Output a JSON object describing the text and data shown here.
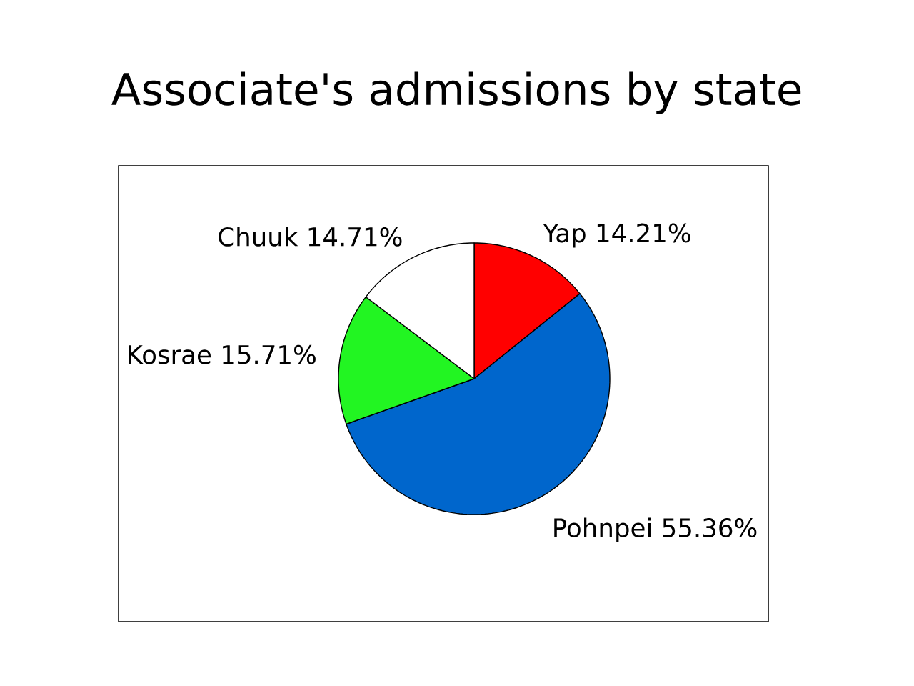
{
  "chart_data": {
    "type": "pie",
    "title": "Associate's admissions by state",
    "categories": [
      "Yap",
      "Pohnpei",
      "Kosrae",
      "Chuuk"
    ],
    "values": [
      14.21,
      55.36,
      15.71,
      14.71
    ],
    "value_labels": [
      "14.21%",
      "55.36%",
      "15.71%",
      "14.71%"
    ],
    "colors": [
      "#ff0000",
      "#0066cc",
      "#22f522",
      "#ffffff"
    ]
  }
}
